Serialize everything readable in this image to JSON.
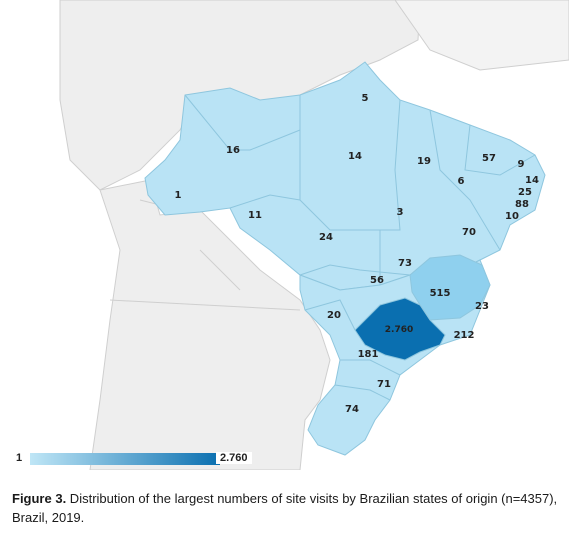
{
  "colors": {
    "background_land": "#eeeeee",
    "border_land": "#cfcfcf",
    "brazil_light": "#b9e3f5",
    "brazil_mid": "#8fd0ee",
    "brazil_dark": "#0a6fb0",
    "state_border": "#8ec6de"
  },
  "states": [
    {
      "id": "RR",
      "value": "5"
    },
    {
      "id": "AM",
      "value": "16"
    },
    {
      "id": "PA",
      "value": "14"
    },
    {
      "id": "MA",
      "value": "19"
    },
    {
      "id": "CE",
      "value": "57"
    },
    {
      "id": "RN",
      "value": "9"
    },
    {
      "id": "PB",
      "value": "14"
    },
    {
      "id": "PE",
      "value": "25"
    },
    {
      "id": "AL",
      "value": "88"
    },
    {
      "id": "SE",
      "value": "10"
    },
    {
      "id": "PI",
      "value": "6"
    },
    {
      "id": "AC",
      "value": "1"
    },
    {
      "id": "RO",
      "value": "11"
    },
    {
      "id": "TO",
      "value": "3"
    },
    {
      "id": "MT",
      "value": "24"
    },
    {
      "id": "BA",
      "value": "70"
    },
    {
      "id": "DF",
      "value": "73"
    },
    {
      "id": "GO",
      "value": "56"
    },
    {
      "id": "MG",
      "value": "515"
    },
    {
      "id": "ES",
      "value": "23"
    },
    {
      "id": "MS",
      "value": "20"
    },
    {
      "id": "SP",
      "value": "2.760"
    },
    {
      "id": "RJ",
      "value": "212"
    },
    {
      "id": "PR",
      "value": "181"
    },
    {
      "id": "SC",
      "value": "71"
    },
    {
      "id": "RS",
      "value": "74"
    }
  ],
  "legend": {
    "min": "1",
    "max": "2.760"
  },
  "caption": {
    "figure": "Figure 3.",
    "text": " Distribution of the largest numbers of site visits by Brazilian states of origin (n=4357), Brazil, 2019."
  }
}
